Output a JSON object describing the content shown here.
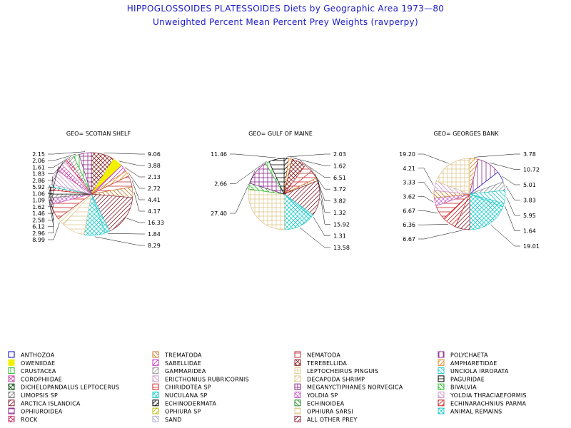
{
  "title": "HIPPOGLOSSOIDES PLATESSOIDES Diets by Geographic Area 1973—80",
  "subtitle": "Unweighted Percent Mean Percent Prey  Weights (ravperpy)",
  "categories": [
    {
      "name": "ANTHOZOA",
      "color": "#0000cc",
      "pattern": "solid-outline"
    },
    {
      "name": "TREMATODA",
      "color": "#c87828",
      "pattern": "diag-down"
    },
    {
      "name": "NEMATODA",
      "color": "#c03030",
      "pattern": "horizontal"
    },
    {
      "name": "POLYCHAETA",
      "color": "#8a2a8a",
      "pattern": "vertical"
    },
    {
      "name": "OWENIIDAE",
      "color": "#f0f000",
      "pattern": "solid"
    },
    {
      "name": "SABELLIDAE",
      "color": "#cc33cc",
      "pattern": "diag-up"
    },
    {
      "name": "TEREBELLIDA",
      "color": "#882222",
      "pattern": "crosshatch-diag"
    },
    {
      "name": "AMPHARETIDAE",
      "color": "#e88820",
      "pattern": "diag-up"
    },
    {
      "name": "CRUSTACEA",
      "color": "#22bb22",
      "pattern": "vertical"
    },
    {
      "name": "GAMMARIDEA",
      "color": "#999999",
      "pattern": "diag-up"
    },
    {
      "name": "LEPTOCHEIRUS PINGUIS",
      "color": "#e0c890",
      "pattern": "grid"
    },
    {
      "name": "UNCIOLA IRRORATA",
      "color": "#22cccc",
      "pattern": "diag-down"
    },
    {
      "name": "COROPHIIDAE",
      "color": "#cc44aa",
      "pattern": "crosshatch-diag"
    },
    {
      "name": "ERICTHONIUS RUBRICORNIS",
      "color": "#cc99cc",
      "pattern": "diag-down"
    },
    {
      "name": "DECAPODA SHRIMP",
      "color": "#e0c890",
      "pattern": "diag-up"
    },
    {
      "name": "PAGURIDAE",
      "color": "#000000",
      "pattern": "horizontal"
    },
    {
      "name": "DICHELOPANDALUS LEPTOCERUS",
      "color": "#115511",
      "pattern": "crosshatch-diag"
    },
    {
      "name": "CHIRIDOTEA SP",
      "color": "#cc2222",
      "pattern": "horizontal"
    },
    {
      "name": "MEGANYCTIPHANES NORVEGICA",
      "color": "#882288",
      "pattern": "grid"
    },
    {
      "name": "BIVALVIA",
      "color": "#22bb22",
      "pattern": "diag-down"
    },
    {
      "name": "LIMOPSIS SP",
      "color": "#777777",
      "pattern": "diag-up"
    },
    {
      "name": "NUCULANA SP",
      "color": "#22cccc",
      "pattern": "crosshatch-diag"
    },
    {
      "name": "YOLDIA SP",
      "color": "#cc66cc",
      "pattern": "crosshatch-diag"
    },
    {
      "name": "YOLDIA THRACIAEFORMIS",
      "color": "#cc99cc",
      "pattern": "diag-down"
    },
    {
      "name": "ARCTICA ISLANDICA",
      "color": "#882233",
      "pattern": "diag-up"
    },
    {
      "name": "ECHINODERMATA",
      "color": "#000000",
      "pattern": "diag-up"
    },
    {
      "name": "ECHINOIDEA",
      "color": "#228822",
      "pattern": "diag-down"
    },
    {
      "name": "ECHINARACHNIUS PARMA",
      "color": "#cc2222",
      "pattern": "diag-up"
    },
    {
      "name": "OPHIUROIDEA",
      "color": "#882288",
      "pattern": "horizontal"
    },
    {
      "name": "OPHIURA SP",
      "color": "#bbbb00",
      "pattern": "diag-up"
    },
    {
      "name": "OPHIURA SARSI",
      "color": "#e0c890",
      "pattern": "horizontal"
    },
    {
      "name": "ANIMAL REMAINS",
      "color": "#22cccc",
      "pattern": "crosshatch-diag"
    },
    {
      "name": "ROCK",
      "color": "#cc3366",
      "pattern": "crosshatch-diag"
    },
    {
      "name": "SAND",
      "color": "#aaaacc",
      "pattern": "diag-down"
    },
    {
      "name": "ALL OTHER PREY",
      "color": "#882233",
      "pattern": "diag-up"
    }
  ],
  "chart_data": [
    {
      "type": "pie",
      "title": "GEO= SCOTIAN SHELF",
      "slices": [
        {
          "category": "TEREBELLIDA",
          "value": 9.06
        },
        {
          "category": "OWENIIDAE",
          "value": 3.88
        },
        {
          "category": "SABELLIDAE",
          "value": 2.72
        },
        {
          "category": "AMPHARETIDAE",
          "value": 2.13
        },
        {
          "category": "NEMATODA",
          "value": 4.41
        },
        {
          "category": "TREMATODA",
          "value": 4.17
        },
        {
          "category": "ARCTICA ISLANDICA",
          "value": 16.33
        },
        {
          "category": "NUCULANA SP",
          "value": 1.84
        },
        {
          "category": "ANIMAL REMAINS",
          "value": 8.29
        },
        {
          "category": "OPHIURA SARSI",
          "value": 8.99
        },
        {
          "category": "DECAPODA SHRIMP",
          "value": 2.96
        },
        {
          "category": "CHIRIDOTEA SP",
          "value": 6.12
        },
        {
          "category": "YOLDIA SP",
          "value": 2.58
        },
        {
          "category": "LIMOPSIS SP",
          "value": 1.46
        },
        {
          "category": "PAGURIDAE",
          "value": 1.62
        },
        {
          "category": "ECHINARACHNIUS PARMA",
          "value": 1.09
        },
        {
          "category": "UNCIOLA IRRORATA",
          "value": 1.06
        },
        {
          "category": "YOLDIA THRACIAEFORMIS",
          "value": 5.92
        },
        {
          "category": "COROPHIIDAE",
          "value": 2.86
        },
        {
          "category": "ERICTHONIUS RUBRICORNIS",
          "value": 1.83
        },
        {
          "category": "ROCK",
          "value": 1.61
        },
        {
          "category": "GAMMARIDEA",
          "value": 2.06
        },
        {
          "category": "CRUSTACEA",
          "value": 2.15
        },
        {
          "category": "MEGANYCTIPHANES NORVEGICA",
          "value": 4.8
        }
      ],
      "right_labels": [
        "9.06",
        "3.88",
        "2.13",
        "2.72",
        "4.41",
        "4.17",
        "16.33",
        "1.84",
        "8.29"
      ],
      "left_labels": [
        "2.15",
        "2.06",
        "1.61",
        "1.83",
        "2.86",
        "5.92",
        "1.06",
        "1.09",
        "1.62",
        "1.46",
        "2.58",
        "6.12",
        "2.96",
        "8.99"
      ]
    },
    {
      "type": "pie",
      "title": "GEO= GULF OF MAINE",
      "slices": [
        {
          "category": "ECHINODERMATA",
          "value": 2.03
        },
        {
          "category": "AMPHARETIDAE",
          "value": 1.62
        },
        {
          "category": "TEREBELLIDA",
          "value": 6.51
        },
        {
          "category": "NEMATODA",
          "value": 3.72
        },
        {
          "category": "CHIRIDOTEA SP",
          "value": 3.82
        },
        {
          "category": "TREMATODA",
          "value": 1.32
        },
        {
          "category": "ARCTICA ISLANDICA",
          "value": 15.92
        },
        {
          "category": "NUCULANA SP",
          "value": 1.31
        },
        {
          "category": "ANIMAL REMAINS",
          "value": 13.58
        },
        {
          "category": "LEPTOCHEIRUS PINGUIS",
          "value": 27.4
        },
        {
          "category": "BIVALVIA",
          "value": 2.66
        },
        {
          "category": "MEGANYCTIPHANES NORVEGICA",
          "value": 11.46
        },
        {
          "category": "CRUSTACEA",
          "value": 1.75
        },
        {
          "category": "PAGURIDAE",
          "value": 6.9
        }
      ],
      "right_labels": [
        "2.03",
        "1.62",
        "6.51",
        "3.72",
        "3.82",
        "1.32",
        "15.92",
        "1.31",
        "13.58"
      ],
      "left_labels": [
        "11.46",
        "2.66",
        "27.40"
      ]
    },
    {
      "type": "pie",
      "title": "GEO= GEORGES BANK",
      "slices": [
        {
          "category": "AMPHARETIDAE",
          "value": 3.78
        },
        {
          "category": "POLYCHAETA",
          "value": 10.72
        },
        {
          "category": "ANTHOZOA",
          "value": 5.01
        },
        {
          "category": "GAMMARIDEA",
          "value": 3.83
        },
        {
          "category": "UNCIOLA IRRORATA",
          "value": 5.95
        },
        {
          "category": "NUCULANA SP",
          "value": 1.64
        },
        {
          "category": "ANIMAL REMAINS",
          "value": 19.01
        },
        {
          "category": "ARCTICA ISLANDICA",
          "value": 6.67
        },
        {
          "category": "ECHINARACHNIUS PARMA",
          "value": 6.36
        },
        {
          "category": "CHIRIDOTEA SP",
          "value": 6.67
        },
        {
          "category": "YOLDIA SP",
          "value": 3.62
        },
        {
          "category": "TREMATODA",
          "value": 3.33
        },
        {
          "category": "ERICTHONIUS RUBRICORNIS",
          "value": 4.21
        },
        {
          "category": "LEPTOCHEIRUS PINGUIS",
          "value": 19.2
        }
      ],
      "right_labels": [
        "3.78",
        "10.72",
        "5.01",
        "3.83",
        "5.95",
        "1.64",
        "19.01"
      ],
      "left_labels": [
        "19.20",
        "4.21",
        "3.33",
        "3.62",
        "6.67",
        "6.36",
        "6.67"
      ]
    }
  ]
}
